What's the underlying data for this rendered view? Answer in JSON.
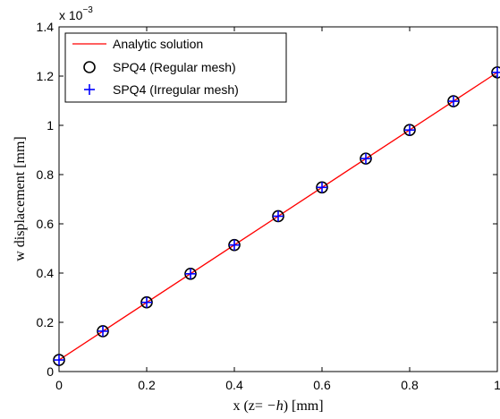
{
  "chart_data": {
    "type": "line",
    "xlabel_parts": [
      "x (z= ",
      "−h",
      ") [mm]"
    ],
    "ylabel": "w displacement [mm]",
    "y_multiplier": {
      "base": "x 10",
      "exponent": "−3"
    },
    "xlim": [
      0,
      1
    ],
    "ylim": [
      0,
      1.4
    ],
    "x_ticks": [
      0,
      0.2,
      0.4,
      0.6,
      0.8,
      1
    ],
    "x_tick_labels": [
      "0",
      "0.2",
      "0.4",
      "0.6",
      "0.8",
      "1"
    ],
    "y_ticks": [
      0,
      0.2,
      0.4,
      0.6,
      0.8,
      1,
      1.2,
      1.4
    ],
    "y_tick_labels": [
      "0",
      "0.2",
      "0.4",
      "0.6",
      "0.8",
      "1",
      "1.2",
      "1.4"
    ],
    "grid": false,
    "legend_position": "top-left",
    "series": [
      {
        "name": "Analytic solution",
        "style": "line",
        "color": "#ff0000",
        "x": [
          0,
          1
        ],
        "y": [
          0.047,
          1.215
        ]
      },
      {
        "name": "SPQ4 (Regular mesh)",
        "style": "circle",
        "color": "#000000",
        "x": [
          0,
          0.1,
          0.2,
          0.3,
          0.4,
          0.5,
          0.6,
          0.7,
          0.8,
          0.9,
          1.0
        ],
        "y": [
          0.047,
          0.164,
          0.281,
          0.397,
          0.514,
          0.631,
          0.748,
          0.865,
          0.981,
          1.098,
          1.215
        ]
      },
      {
        "name": "SPQ4 (Irregular mesh)",
        "style": "plus",
        "color": "#0000ff",
        "x": [
          0,
          0.1,
          0.2,
          0.3,
          0.4,
          0.5,
          0.6,
          0.7,
          0.8,
          0.9,
          1.0
        ],
        "y": [
          0.047,
          0.164,
          0.281,
          0.397,
          0.514,
          0.631,
          0.748,
          0.865,
          0.981,
          1.098,
          1.215
        ]
      }
    ]
  }
}
